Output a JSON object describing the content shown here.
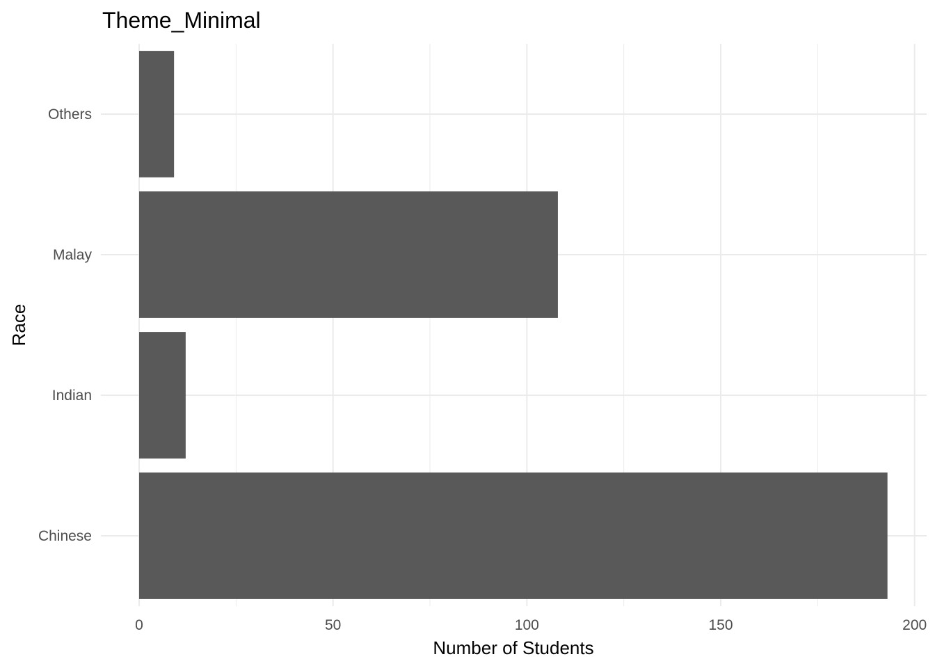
{
  "chart_data": {
    "type": "bar",
    "orientation": "horizontal",
    "title": "Theme_Minimal",
    "xlabel": "Number of Students",
    "ylabel": "Race",
    "categories": [
      "Chinese",
      "Indian",
      "Malay",
      "Others"
    ],
    "values": [
      193,
      12,
      108,
      9
    ],
    "xlim": [
      0,
      203
    ],
    "xticks": [
      0,
      50,
      100,
      150,
      200
    ],
    "xtick_labels": [
      "0",
      "50",
      "100",
      "150",
      "200"
    ],
    "bar_color": "#595959",
    "grid": true,
    "legend": "none"
  }
}
